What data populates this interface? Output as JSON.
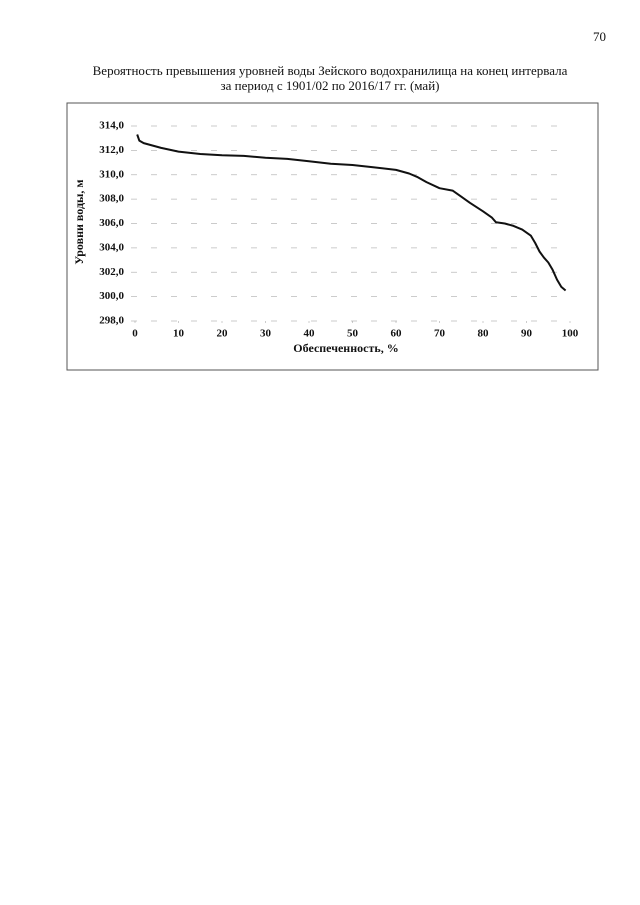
{
  "page_number": "70",
  "chart_data": {
    "type": "line",
    "title": [
      "Вероятность превышения уровней воды Зейского водохранилища на конец интервала",
      "за период с 1901/02 по 2016/17 гг. (май)"
    ],
    "x_label": "Обеспеченность, %",
    "y_label": "Уровни воды, м",
    "xlim": [
      0,
      100
    ],
    "xticks": [
      0,
      10,
      20,
      30,
      40,
      50,
      60,
      70,
      80,
      90,
      100
    ],
    "ylim": [
      298,
      314
    ],
    "yticks": [
      {
        "value": 298,
        "label": "298,0"
      },
      {
        "value": 300,
        "label": "300,0"
      },
      {
        "value": 302,
        "label": "302,0"
      },
      {
        "value": 304,
        "label": "304,0"
      },
      {
        "value": 306,
        "label": "306,0"
      },
      {
        "value": 308,
        "label": "308,0"
      },
      {
        "value": 310,
        "label": "310,0"
      },
      {
        "value": 312,
        "label": "312,0"
      },
      {
        "value": 314,
        "label": "314,0"
      }
    ],
    "grid": true,
    "color": "#111111",
    "x": [
      0.5,
      1,
      2,
      4,
      6,
      10,
      15,
      20,
      25,
      30,
      35,
      40,
      45,
      50,
      55,
      60,
      63,
      65,
      67,
      70,
      73,
      75,
      77,
      80,
      82,
      83,
      85,
      87,
      89,
      91,
      92,
      93,
      94,
      95,
      96,
      97,
      98,
      99
    ],
    "values": [
      313.3,
      312.8,
      312.6,
      312.4,
      312.2,
      311.9,
      311.7,
      311.6,
      311.55,
      311.4,
      311.3,
      311.1,
      310.9,
      310.8,
      310.6,
      310.4,
      310.1,
      309.8,
      309.4,
      308.9,
      308.7,
      308.2,
      307.7,
      307.0,
      306.5,
      306.1,
      306.0,
      305.8,
      305.5,
      305.0,
      304.4,
      303.7,
      303.2,
      302.8,
      302.2,
      301.4,
      300.8,
      300.5
    ]
  }
}
